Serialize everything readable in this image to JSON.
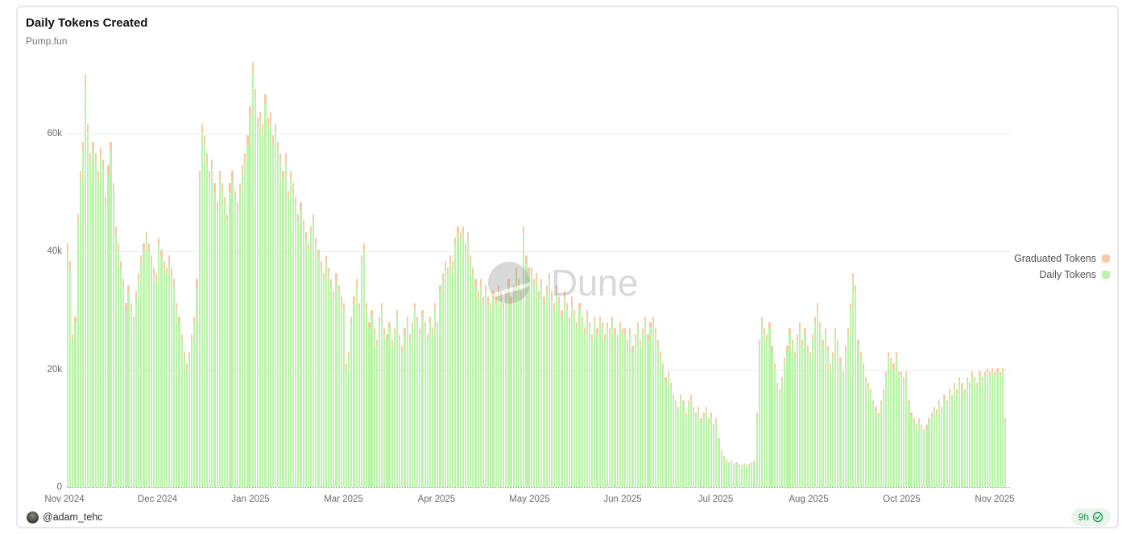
{
  "card": {
    "title": "Daily Tokens Created",
    "subtitle": "Pump.fun"
  },
  "watermark": {
    "text": "Dune"
  },
  "legend": [
    {
      "label": "Graduated Tokens",
      "color": "#f9c9a3"
    },
    {
      "label": "Daily Tokens",
      "color": "#bbf3aa"
    }
  ],
  "footer": {
    "author_handle": "@adam_tehc",
    "freshness_label": "9h"
  },
  "colors": {
    "daily_bar": "#bbf3aa",
    "graduated_bar": "#f9c9a3",
    "gridline": "#ececec",
    "axis_text": "#6b6b6b",
    "badge_green": "#17994e",
    "badge_bg": "#e9f5ec"
  },
  "chart_data": {
    "type": "bar",
    "stacked": true,
    "title": "Daily Tokens Created",
    "subtitle": "Pump.fun",
    "x_range": "Daily bars, Nov 2024 through early Nov 2025",
    "x_tick_labels": [
      "Nov 2024",
      "Dec 2024",
      "Jan 2025",
      "Mar 2025",
      "Apr 2025",
      "May 2025",
      "Jun 2025",
      "Jul 2025",
      "Aug 2025",
      "Oct 2025",
      "Nov 2025"
    ],
    "y_ticks_k": [
      0,
      20,
      40,
      60
    ],
    "y_tick_labels": [
      "0",
      "20k",
      "40k",
      "60k"
    ],
    "ylim_k": [
      0,
      74
    ],
    "unit": "tokens per day (thousands)",
    "legend_position": "right",
    "series": [
      {
        "name": "Daily Tokens",
        "color": "#bbf3aa",
        "values_k": [
          40,
          37,
          25,
          28,
          45,
          52,
          57,
          68.5,
          60,
          55,
          57,
          55,
          52,
          56,
          54,
          48,
          53,
          57,
          50,
          43,
          40,
          37,
          34,
          30,
          33,
          30,
          28,
          32,
          35,
          38,
          40,
          42,
          40,
          38,
          36,
          35,
          41,
          39,
          37,
          36,
          38,
          36,
          34,
          30,
          28,
          25,
          22,
          20,
          22,
          25,
          28,
          34,
          52,
          60,
          58,
          55,
          52,
          54,
          50,
          47,
          52,
          50,
          48,
          45,
          50,
          52,
          49,
          47,
          50,
          53,
          55,
          58,
          63,
          70.5,
          66,
          61,
          62,
          60,
          65,
          61,
          62,
          58,
          60,
          57,
          55,
          52,
          55,
          49,
          52,
          50,
          48,
          45,
          47,
          44,
          42,
          40,
          43,
          45,
          41,
          39,
          37,
          35,
          38,
          36,
          34,
          32,
          35,
          33,
          31,
          30,
          20,
          22,
          28,
          31,
          34,
          30,
          38,
          40,
          30,
          27,
          29,
          26,
          24,
          28,
          30,
          26,
          25,
          27,
          24,
          26,
          29,
          25,
          23,
          26,
          28,
          25,
          27,
          30,
          28,
          26,
          29,
          27,
          25,
          28,
          26,
          30,
          27,
          33,
          35,
          37,
          36,
          38,
          37,
          41,
          43,
          42,
          43,
          40,
          42,
          38,
          36,
          34,
          32,
          34,
          31,
          33,
          31,
          30,
          32,
          31,
          33,
          32,
          30,
          32,
          34,
          31,
          33,
          36,
          34,
          32,
          43,
          38,
          36,
          36,
          34,
          35,
          32,
          34,
          31,
          33,
          35,
          32,
          30,
          33,
          31,
          29,
          32,
          30,
          28,
          31,
          29,
          27,
          30,
          28,
          26,
          29,
          27,
          25,
          28,
          26,
          28,
          27,
          25,
          27,
          26,
          28,
          26,
          25,
          27,
          26,
          26,
          24,
          26,
          23,
          25,
          27,
          24,
          26,
          28,
          25,
          27,
          28,
          26,
          24,
          22,
          20,
          18,
          19,
          17,
          15,
          14,
          13,
          15,
          14,
          12,
          14,
          15,
          13,
          12,
          13,
          11,
          12,
          13,
          11,
          12,
          10,
          11,
          8,
          6,
          5,
          4.5,
          4,
          4.2,
          3.8,
          4,
          3.6,
          3.5,
          3.8,
          3.5,
          3.6,
          4,
          4.2,
          12,
          24,
          28,
          26,
          25,
          27,
          23,
          20,
          17,
          16,
          18,
          21,
          23,
          26,
          24,
          22,
          25,
          27,
          24,
          26,
          23,
          22,
          25,
          28,
          30,
          27,
          24,
          26,
          23,
          20,
          22,
          26,
          24,
          21,
          19,
          23,
          26,
          30,
          35,
          33,
          24,
          22,
          20,
          18,
          17,
          16,
          14,
          13,
          12,
          14,
          16,
          19,
          22,
          21,
          20,
          22,
          19,
          19,
          18,
          19,
          14,
          12,
          11,
          10,
          11,
          10,
          9.5,
          10,
          11,
          12,
          13,
          12.5,
          14,
          13,
          15,
          14,
          16,
          15,
          17,
          16,
          18,
          17,
          16,
          18,
          17,
          19,
          18,
          17,
          19,
          18,
          19,
          19.5,
          19,
          19.5,
          19,
          19.5,
          19,
          19.5,
          11
        ]
      },
      {
        "name": "Graduated Tokens",
        "color": "#f9c9a3",
        "stacked_on": "Daily Tokens",
        "values_k": [
          1.3,
          1.3,
          1.0,
          1.0,
          1.3,
          1.6,
          1.6,
          1.6,
          1.6,
          1.6,
          1.6,
          1.6,
          1.6,
          1.6,
          1.6,
          1.3,
          1.6,
          1.6,
          1.6,
          1.3,
          1.3,
          1.3,
          1.3,
          1.3,
          1.3,
          1.3,
          1.0,
          1.3,
          1.3,
          1.3,
          1.3,
          1.3,
          1.3,
          1.3,
          1.3,
          1.3,
          1.3,
          1.3,
          1.3,
          1.3,
          1.3,
          1.3,
          1.3,
          1.3,
          1.0,
          1.0,
          1.0,
          1.0,
          1.0,
          1.0,
          1.0,
          1.3,
          1.6,
          1.6,
          1.6,
          1.6,
          1.6,
          1.6,
          1.6,
          1.3,
          1.6,
          1.6,
          1.3,
          1.3,
          1.6,
          1.6,
          1.3,
          1.3,
          1.6,
          1.6,
          1.6,
          1.6,
          1.6,
          1.6,
          1.6,
          1.6,
          1.6,
          1.6,
          1.6,
          1.6,
          1.6,
          1.6,
          1.6,
          1.6,
          1.6,
          1.6,
          1.6,
          1.3,
          1.6,
          1.6,
          1.3,
          1.3,
          1.3,
          1.3,
          1.3,
          1.3,
          1.3,
          1.3,
          1.3,
          1.3,
          1.3,
          1.3,
          1.3,
          1.3,
          1.3,
          1.3,
          1.3,
          1.3,
          1.3,
          1.3,
          1.0,
          1.0,
          1.0,
          1.3,
          1.3,
          1.3,
          1.3,
          1.3,
          1.3,
          1.0,
          1.0,
          1.0,
          1.0,
          1.0,
          1.3,
          1.0,
          1.0,
          1.0,
          1.0,
          1.0,
          1.0,
          1.0,
          1.0,
          1.0,
          1.0,
          1.0,
          1.0,
          1.3,
          1.0,
          1.0,
          1.0,
          1.0,
          1.0,
          1.0,
          1.0,
          1.3,
          1.0,
          1.3,
          1.3,
          1.3,
          1.3,
          1.3,
          1.3,
          1.3,
          1.3,
          1.3,
          1.3,
          1.3,
          1.3,
          1.3,
          1.3,
          1.3,
          1.3,
          1.3,
          1.3,
          1.3,
          1.3,
          1.3,
          1.3,
          1.3,
          1.3,
          1.3,
          1.3,
          1.3,
          1.3,
          1.3,
          1.3,
          1.3,
          1.3,
          1.3,
          1.3,
          1.3,
          1.3,
          1.3,
          1.3,
          1.3,
          1.3,
          1.3,
          1.3,
          1.3,
          1.3,
          1.3,
          1.3,
          1.3,
          1.3,
          1.0,
          1.3,
          1.3,
          1.0,
          1.3,
          1.0,
          1.0,
          1.3,
          1.0,
          1.0,
          1.0,
          1.0,
          1.0,
          1.0,
          1.0,
          1.0,
          1.0,
          1.0,
          1.0,
          1.0,
          1.0,
          1.0,
          1.0,
          1.0,
          1.0,
          1.0,
          1.0,
          1.0,
          1.0,
          1.0,
          1.0,
          1.0,
          1.0,
          1.0,
          1.0,
          1.0,
          1.0,
          1.0,
          1.0,
          1.0,
          1.0,
          0.7,
          0.7,
          0.7,
          0.7,
          0.7,
          0.7,
          0.7,
          0.7,
          0.7,
          0.7,
          0.7,
          0.7,
          0.7,
          0.7,
          0.7,
          0.7,
          0.7,
          0.7,
          0.7,
          0.7,
          0.7,
          0.3,
          0.3,
          0.3,
          0.3,
          0.3,
          0.3,
          0.3,
          0.3,
          0.3,
          0.3,
          0.3,
          0.3,
          0.3,
          0.3,
          0.3,
          0.7,
          1.0,
          1.0,
          1.0,
          1.0,
          1.0,
          1.0,
          1.0,
          0.7,
          0.7,
          0.7,
          1.0,
          1.0,
          1.0,
          1.0,
          1.0,
          1.0,
          1.0,
          1.0,
          1.0,
          1.0,
          1.0,
          1.0,
          1.0,
          1.3,
          1.0,
          1.0,
          1.0,
          1.0,
          1.0,
          1.0,
          1.0,
          1.0,
          1.0,
          0.7,
          1.0,
          1.0,
          1.3,
          1.3,
          1.3,
          1.0,
          1.0,
          1.0,
          0.7,
          0.7,
          0.7,
          0.7,
          0.7,
          0.7,
          0.7,
          0.7,
          0.7,
          1.0,
          1.0,
          1.0,
          1.0,
          0.7,
          0.7,
          0.7,
          0.7,
          0.7,
          0.7,
          0.7,
          0.7,
          0.7,
          0.7,
          0.3,
          0.7,
          0.7,
          0.7,
          0.7,
          0.7,
          0.7,
          0.7,
          0.7,
          0.7,
          0.7,
          0.7,
          0.7,
          0.7,
          0.7,
          0.7,
          0.7,
          0.7,
          0.7,
          0.7,
          0.7,
          0.7,
          0.7,
          0.7,
          0.7,
          0.7,
          0.7,
          0.7,
          0.7,
          0.7,
          0.7,
          0.7,
          0.7
        ]
      }
    ]
  }
}
